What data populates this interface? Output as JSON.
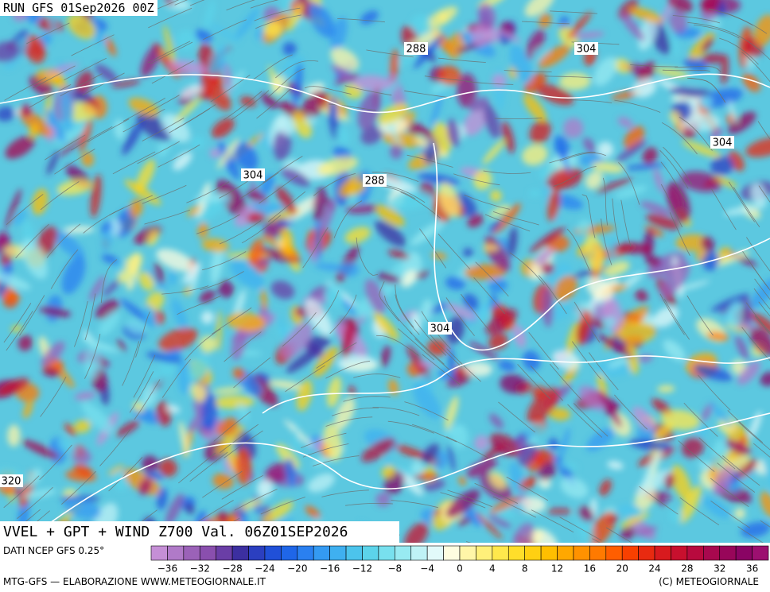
{
  "header": {
    "run": "RUN GFS 01Sep2026 00Z"
  },
  "contour_labels": [
    "288",
    "304",
    "304",
    "304",
    "288",
    "304",
    "320"
  ],
  "title": "VVEL + GPT + WIND Z700 Val. 06Z01SEP2026",
  "source": "DATI NCEP GFS 0.25°",
  "colorbar": {
    "ticks": [
      "−36",
      "−32",
      "−28",
      "−24",
      "−20",
      "−16",
      "−12",
      "−8",
      "−4",
      "0",
      "4",
      "8",
      "12",
      "16",
      "20",
      "24",
      "28",
      "32",
      "36"
    ]
  },
  "footer": {
    "left": "MTG-GFS — ELABORAZIONE WWW.METEOGIORNALE.IT",
    "right": "(C) METEOGIORNALE"
  }
}
